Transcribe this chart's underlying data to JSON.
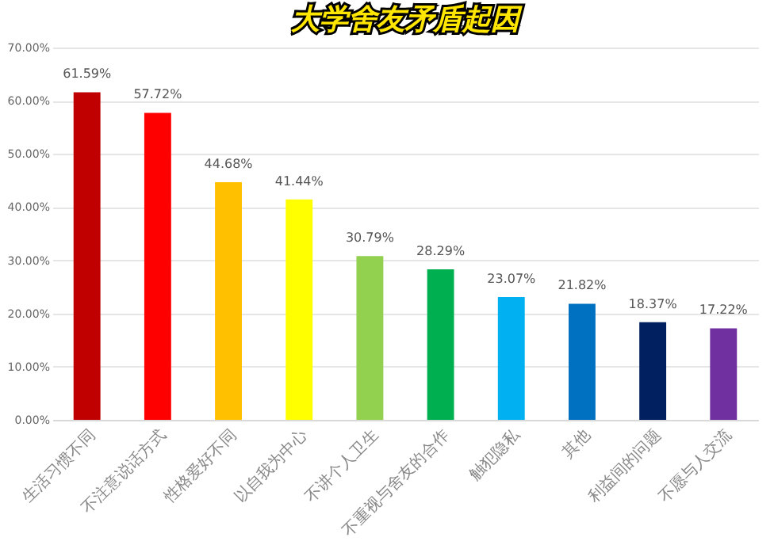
{
  "chart_data": {
    "type": "bar",
    "title": "大学舍友矛盾起因",
    "categories": [
      "生活习惯不同",
      "不注意说话方式",
      "性格爱好不同",
      "以自我为中心",
      "不讲个人卫生",
      "不重视与舍友的合作",
      "触犯隐私",
      "其他",
      "利益间的问题",
      "不愿与人交流"
    ],
    "values": [
      61.59,
      57.72,
      44.68,
      41.44,
      30.79,
      28.29,
      23.07,
      21.82,
      18.37,
      17.22
    ],
    "value_labels": [
      "61.59%",
      "57.72%",
      "44.68%",
      "41.44%",
      "30.79%",
      "28.29%",
      "23.07%",
      "21.82%",
      "18.37%",
      "17.22%"
    ],
    "colors": [
      "#c00000",
      "#ff0000",
      "#ffc000",
      "#ffff00",
      "#92d050",
      "#00b050",
      "#00b0f0",
      "#0070c0",
      "#002060",
      "#7030a0"
    ],
    "ylim": [
      0,
      70
    ],
    "yticks": [
      {
        "value": 0,
        "label": "0.00%"
      },
      {
        "value": 10,
        "label": "10.00%"
      },
      {
        "value": 20,
        "label": "20.00%"
      },
      {
        "value": 30,
        "label": "30.00%"
      },
      {
        "value": 40,
        "label": "40.00%"
      },
      {
        "value": 50,
        "label": "50.00%"
      },
      {
        "value": 60,
        "label": "60.00%"
      },
      {
        "value": 70,
        "label": "70.00%"
      }
    ],
    "grid": "y"
  }
}
